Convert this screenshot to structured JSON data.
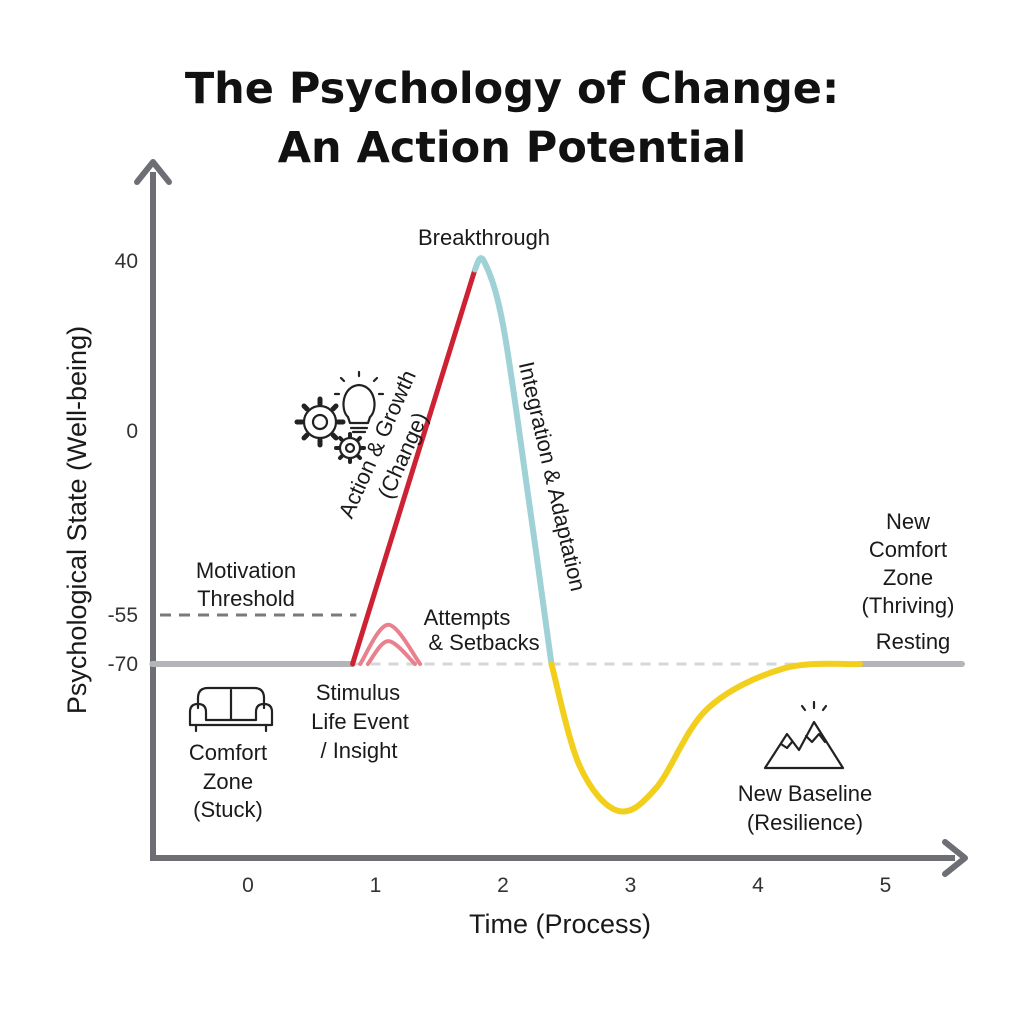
{
  "chart_data": {
    "type": "line",
    "title_line1": "The Psychology of Change:",
    "title_line2": "An Action Potential",
    "xlabel": "Time (Process)",
    "ylabel": "Psychological State (Well-being)",
    "x_ticks": [
      "0",
      "1",
      "2",
      "3",
      "4",
      "5"
    ],
    "y_ticks": [
      "40",
      "0",
      "-55",
      "-70"
    ],
    "threshold": {
      "value": -55,
      "label_line1": "Motivation",
      "label_line2": "Threshold"
    },
    "baseline_value": -70,
    "series": [
      {
        "segment": "resting",
        "color": "#b3b5b9",
        "points": [
          [
            -0.75,
            -70
          ],
          [
            0.82,
            -70
          ]
        ]
      },
      {
        "segment": "rise",
        "color": "#cc2233",
        "points": [
          [
            0.82,
            -70
          ],
          [
            1.78,
            38
          ]
        ]
      },
      {
        "segment": "fall",
        "color": "#9ed2d6",
        "points": [
          [
            1.78,
            38
          ],
          [
            1.85,
            40
          ],
          [
            2.0,
            25
          ],
          [
            2.2,
            -20
          ],
          [
            2.38,
            -70
          ]
        ]
      },
      {
        "segment": "undershoot",
        "color": "#f2cf1d",
        "points": [
          [
            2.38,
            -70
          ],
          [
            2.6,
            -115
          ],
          [
            2.9,
            -135
          ],
          [
            3.2,
            -125
          ],
          [
            3.6,
            -90
          ],
          [
            4.2,
            -72
          ],
          [
            4.8,
            -70
          ]
        ]
      },
      {
        "segment": "new-resting",
        "color": "#b3b5b9",
        "points": [
          [
            4.8,
            -70
          ],
          [
            5.6,
            -70
          ]
        ]
      },
      {
        "segment": "attempts",
        "color": "#e8808e",
        "points": [
          [
            0.88,
            -70
          ],
          [
            1.1,
            -58
          ],
          [
            1.35,
            -70
          ]
        ]
      }
    ],
    "annotations": {
      "breakthrough": "Breakthrough",
      "action_line1": "Action & Growth",
      "action_line2": "(Change)",
      "integration": "Integration & Adaptation",
      "attempts_line1": "Attempts",
      "attempts_line2": "& Setbacks",
      "stimulus_line1": "Stimulus",
      "stimulus_line2": "Life Event",
      "stimulus_line3": "/ Insight",
      "comfort_line1": "Comfort",
      "comfort_line2": "Zone",
      "comfort_line3": "(Stuck)",
      "new_comfort_line1": "New",
      "new_comfort_line2": "Comfort",
      "new_comfort_line3": "Zone",
      "new_comfort_line4": "(Thriving)",
      "resting": "Resting",
      "new_baseline_line1": "New Baseline",
      "new_baseline_line2": "(Resilience)"
    },
    "icons": [
      "gears-icon",
      "lightbulb-icon",
      "sofa-icon",
      "mountain-icon"
    ],
    "colors": {
      "axis": "#6e6f74",
      "rise": "#cc2233",
      "fall": "#9ed2d6",
      "undershoot": "#f2cf1d",
      "resting": "#b3b5b9",
      "attempts": "#e8808e"
    }
  }
}
